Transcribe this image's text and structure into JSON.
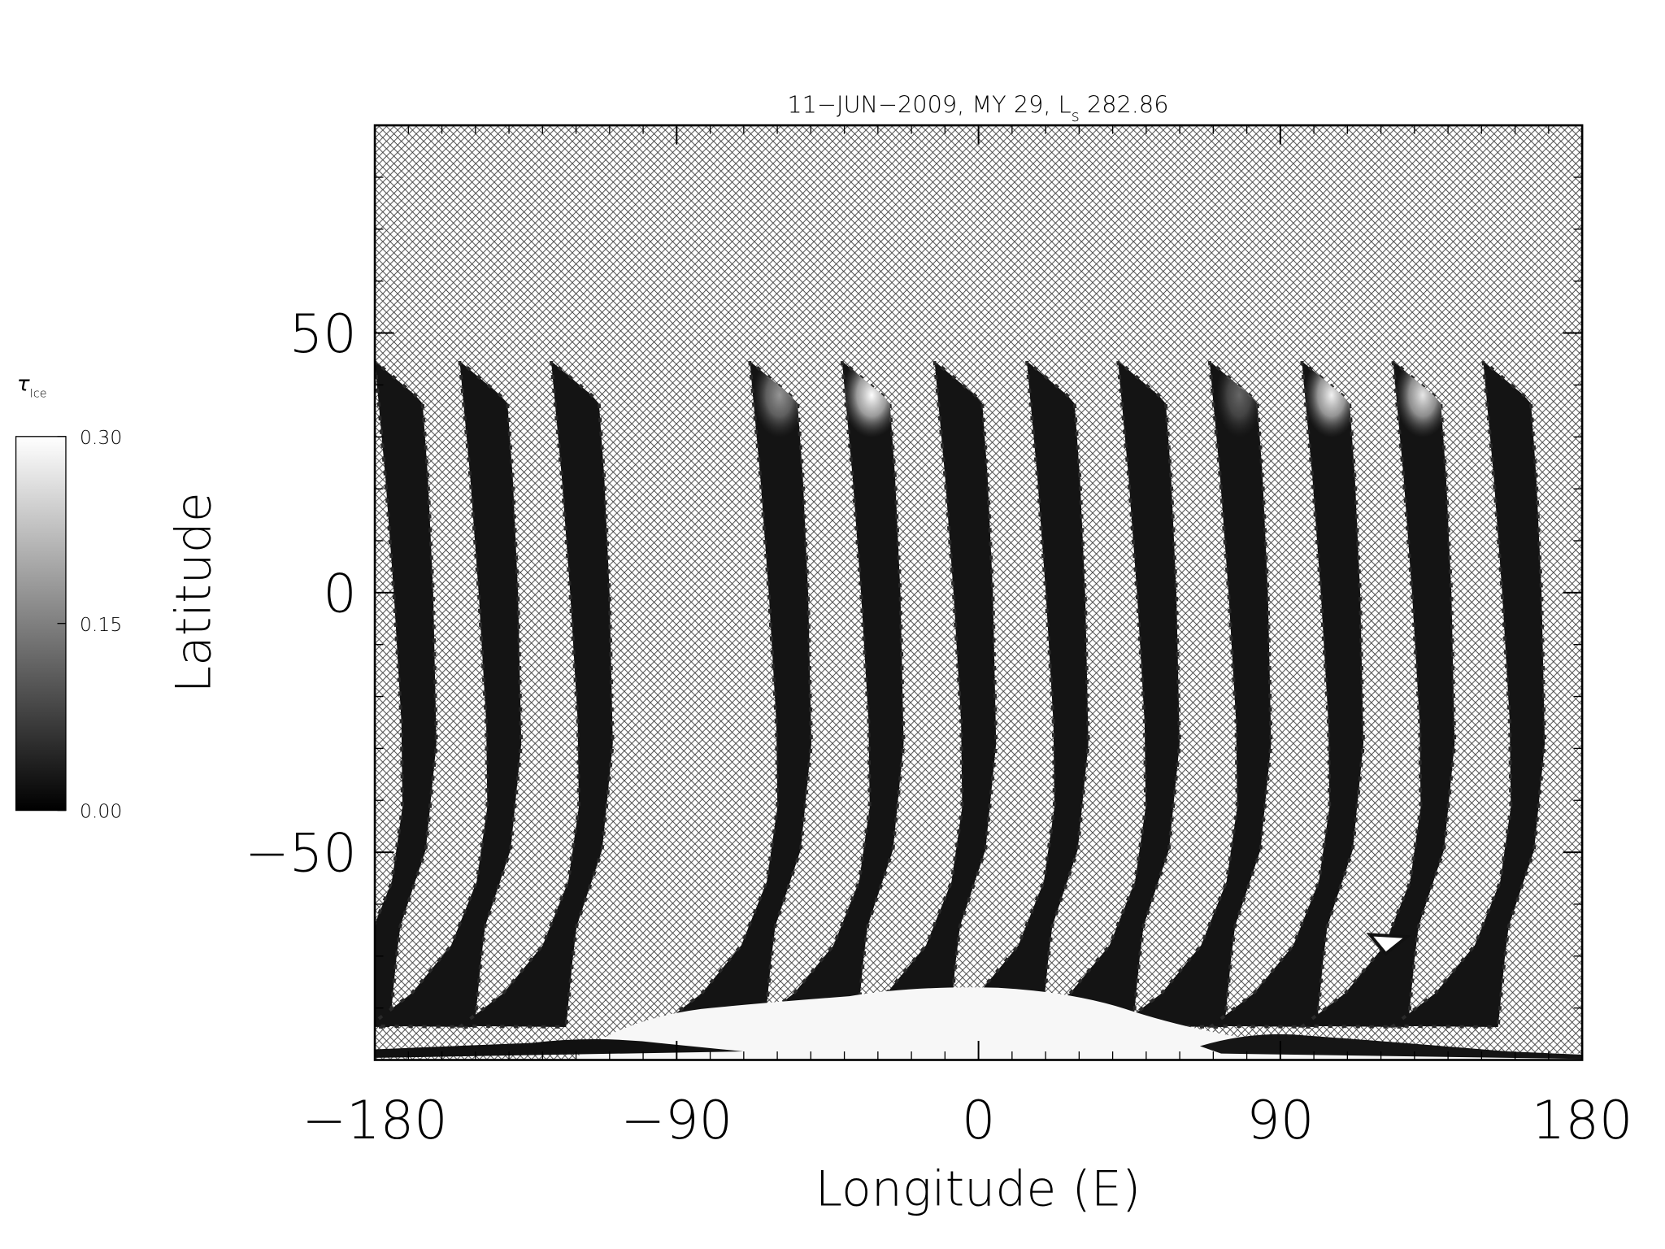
{
  "chart_data": {
    "type": "swath-map",
    "title": "11−JUN−2009, MY 29,  L",
    "title_sub": "s",
    "title_end": " 282.86",
    "x_label": "Longitude (E)",
    "y_label": "Latitude",
    "xlim": [
      -180,
      180
    ],
    "ylim": [
      -90,
      90
    ],
    "xticks": [
      {
        "value": -180,
        "label": "−180"
      },
      {
        "value": -90,
        "label": "−90"
      },
      0,
      90,
      180
    ],
    "yticks": [
      {
        "value": -50,
        "label": "−50"
      },
      0,
      50
    ],
    "swath_lons": [
      -180,
      -154.7,
      -127.4,
      -68.2,
      -40.7,
      -13.1,
      14.4,
      41.6,
      68.9,
      96.4,
      123.6,
      150.5
    ],
    "colorbar": {
      "label": "τ",
      "label_sub": "Ice",
      "lim": [
        0,
        0.3
      ],
      "ticks": [
        {
          "value": 0,
          "label": "0.00"
        },
        {
          "value": 0.15,
          "label": "0.15"
        },
        {
          "value": 0.3,
          "label": "0.30"
        }
      ],
      "colors": [
        "#000000",
        "#ffffff"
      ]
    }
  }
}
